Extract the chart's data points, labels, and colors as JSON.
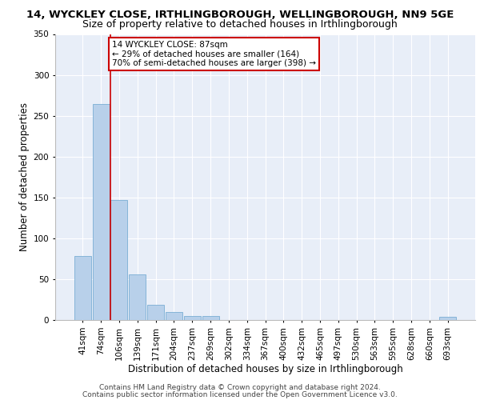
{
  "title_line1": "14, WYCKLEY CLOSE, IRTHLINGBOROUGH, WELLINGBOROUGH, NN9 5GE",
  "title_line2": "Size of property relative to detached houses in Irthlingborough",
  "xlabel": "Distribution of detached houses by size in Irthlingborough",
  "ylabel": "Number of detached properties",
  "categories": [
    "41sqm",
    "74sqm",
    "106sqm",
    "139sqm",
    "171sqm",
    "204sqm",
    "237sqm",
    "269sqm",
    "302sqm",
    "334sqm",
    "367sqm",
    "400sqm",
    "432sqm",
    "465sqm",
    "497sqm",
    "530sqm",
    "563sqm",
    "595sqm",
    "628sqm",
    "660sqm",
    "693sqm"
  ],
  "values": [
    78,
    264,
    147,
    56,
    19,
    10,
    5,
    5,
    0,
    0,
    0,
    0,
    0,
    0,
    0,
    0,
    0,
    0,
    0,
    0,
    4
  ],
  "bar_color": "#b8d0ea",
  "bar_edge_color": "#7aaed4",
  "vline_x": 1.5,
  "vline_color": "#cc0000",
  "annotation_text": "14 WYCKLEY CLOSE: 87sqm\n← 29% of detached houses are smaller (164)\n70% of semi-detached houses are larger (398) →",
  "annotation_box_color": "#ffffff",
  "annotation_box_edge_color": "#cc0000",
  "ylim": [
    0,
    350
  ],
  "yticks": [
    0,
    50,
    100,
    150,
    200,
    250,
    300,
    350
  ],
  "footer_line1": "Contains HM Land Registry data © Crown copyright and database right 2024.",
  "footer_line2": "Contains public sector information licensed under the Open Government Licence v3.0.",
  "background_color": "#e8eef8",
  "grid_color": "#ffffff",
  "title_fontsize": 9.5,
  "subtitle_fontsize": 9,
  "axis_label_fontsize": 8.5,
  "tick_fontsize": 7.5,
  "annotation_fontsize": 7.5,
  "footer_fontsize": 6.5
}
